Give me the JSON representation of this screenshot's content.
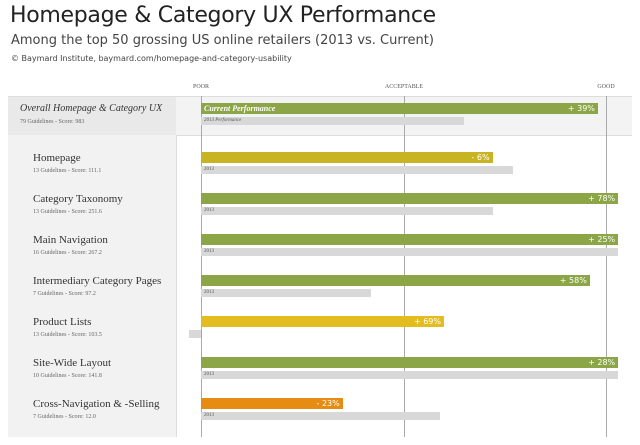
{
  "header": {
    "title": "Homepage & Category UX Performance",
    "subtitle": "Among the top 50 grossing US online retailers (2013 vs. Current)",
    "source": "© Baymard Institute, baymard.com/homepage-and-category-usability"
  },
  "chart_data": {
    "type": "bar",
    "orientation": "horizontal",
    "axis": {
      "ticks": [
        "POOR",
        "ACCEPTABLE",
        "GOOD"
      ],
      "tick_values": [
        0,
        50,
        100
      ],
      "note": "scale from Poor (0) to Good (100), values estimated from bar lengths"
    },
    "legend": {
      "current": "Current Performance",
      "previous": "2013 Performance"
    },
    "colors": {
      "green": "#8ba547",
      "olive": "#c8b422",
      "yellow": "#e3bd1f",
      "orange": "#e68c12",
      "gray": "#d8d8d8"
    },
    "overall": {
      "label": "Overall Homepage & Category UX",
      "sub": "79 Guidelines - Score: 983",
      "current": 98,
      "previous": 65,
      "change": "+ 39%",
      "color": "green"
    },
    "rows": [
      {
        "label": "Homepage",
        "sub": "13 Guidelines - Score: 111.1",
        "current": 72,
        "previous": 77,
        "change": "- 6%",
        "color": "olive",
        "prev_label": "2013"
      },
      {
        "label": "Category Taxonomy",
        "sub": "13 Guidelines - Score: 251.6",
        "current": 103,
        "previous": 72,
        "change": "+ 78%",
        "color": "green",
        "prev_label": "2013"
      },
      {
        "label": "Main Navigation",
        "sub": "16 Guidelines - Score: 267.2",
        "current": 103,
        "previous": 103,
        "change": "+ 25%",
        "color": "green",
        "prev_label": "2013"
      },
      {
        "label": "Intermediary Category Pages",
        "sub": "7 Guidelines - Score: 97.2",
        "current": 96,
        "previous": 42,
        "change": "+ 58%",
        "color": "green",
        "prev_label": "2013"
      },
      {
        "label": "Product Lists",
        "sub": "13 Guidelines - Score: 103.5",
        "current": 60,
        "previous": -3,
        "change": "+ 69%",
        "color": "yellow",
        "prev_label": ""
      },
      {
        "label": "Site-Wide Layout",
        "sub": "10 Guidelines - Score: 141.8",
        "current": 103,
        "previous": 103,
        "change": "+ 28%",
        "color": "green",
        "prev_label": "2013"
      },
      {
        "label": "Cross-Navigation & -Selling",
        "sub": "7 Guidelines - Score: 12.0",
        "current": 35,
        "previous": 59,
        "change": "- 23%",
        "color": "orange",
        "prev_label": "2013"
      }
    ]
  }
}
